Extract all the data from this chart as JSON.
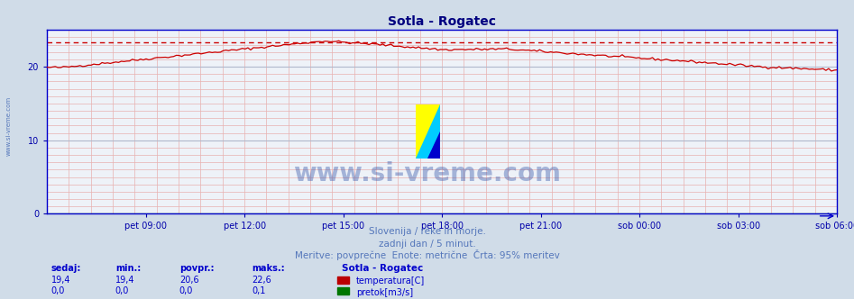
{
  "title": "Sotla - Rogatec",
  "title_color": "#000080",
  "bg_color": "#d0dce8",
  "plot_bg_color": "#eef2f8",
  "grid_color_h": "#e8b0b0",
  "grid_color_v": "#e8b0b0",
  "x_tick_labels": [
    "pet 09:00",
    "pet 12:00",
    "pet 15:00",
    "pet 18:00",
    "pet 21:00",
    "sob 00:00",
    "sob 03:00",
    "sob 06:00"
  ],
  "y_ticks": [
    0,
    10,
    20
  ],
  "y_max": 25,
  "footer_lines": [
    "Slovenija / reke in morje.",
    "zadnji dan / 5 minut.",
    "Meritve: povprečne  Enote: metrične  Črta: 95% meritev"
  ],
  "footer_color": "#5577bb",
  "table_headers": [
    "sedaj:",
    "min.:",
    "povpr.:",
    "maks.:"
  ],
  "table_row1": [
    "19,4",
    "19,4",
    "20,6",
    "22,6"
  ],
  "table_row2": [
    "0,0",
    "0,0",
    "0,0",
    "0,1"
  ],
  "table_station": "Sotla - Rogatec",
  "legend1_label": "temperatura[C]",
  "legend1_color": "#bb0000",
  "legend2_label": "pretok[m3/s]",
  "legend2_color": "#007700",
  "temp_line_color": "#cc0000",
  "flow_line_color": "#007700",
  "hline_color": "#cc0000",
  "hline_y": 23.3,
  "left_label_color": "#5577bb",
  "left_label": "www.si-vreme.com",
  "axis_color": "#0000cc",
  "tick_color": "#0000aa",
  "n_points": 288,
  "logo_yellow": "#ffff00",
  "logo_cyan": "#00ccff",
  "logo_blue": "#0000cc"
}
